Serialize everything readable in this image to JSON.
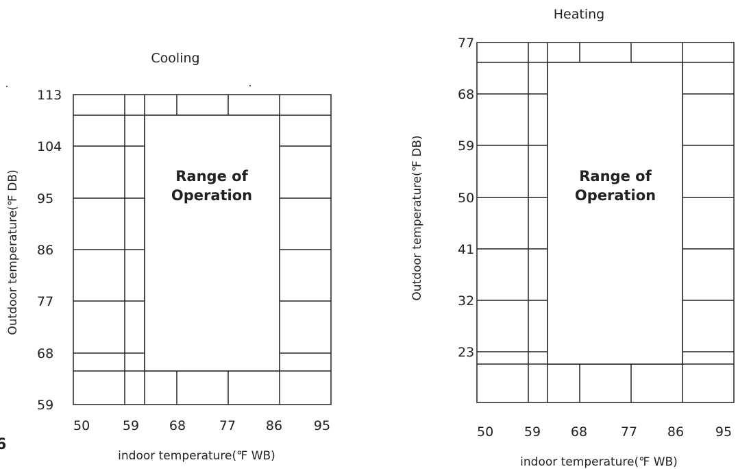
{
  "page_fragment": "6",
  "panels": [
    {
      "id": "cooling",
      "title": "Cooling",
      "ylabel": "Outdoor temperature(℉ DB)",
      "xlabel": "indoor temperature(℉ WB)",
      "x_ticks": [
        "50",
        "59",
        "68",
        "77",
        "86",
        "95"
      ],
      "y_ticks": [
        "113",
        "104",
        "95",
        "86",
        "77",
        "68",
        "59"
      ],
      "region_label": [
        "Range of",
        "Operation"
      ],
      "x_range": [
        50,
        95
      ],
      "y_range": [
        59,
        113
      ],
      "operating_range": {
        "x": [
          62.5,
          86
        ],
        "y": [
          65,
          109
        ]
      }
    },
    {
      "id": "heating",
      "title": "Heating",
      "ylabel": "Outdoor temperature(℉ DB)",
      "xlabel": "indoor temperature(℉ WB)",
      "x_ticks": [
        "50",
        "59",
        "68",
        "77",
        "86",
        "95"
      ],
      "y_ticks": [
        "77",
        "68",
        "59",
        "50",
        "41",
        "32",
        "23"
      ],
      "region_label": [
        "Range of",
        "Operation"
      ],
      "x_range": [
        50,
        95
      ],
      "y_range": [
        14,
        77
      ],
      "operating_range": {
        "x": [
          62.5,
          86
        ],
        "y": [
          21,
          75
        ]
      }
    }
  ]
}
